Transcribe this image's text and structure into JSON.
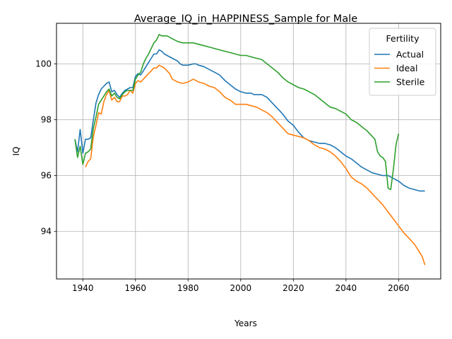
{
  "chart_data": {
    "type": "line",
    "title": "Average_IQ_in_HAPPINESS_Sample for Male",
    "xlabel": "Years",
    "ylabel": "IQ",
    "xlim": [
      1930,
      2076
    ],
    "ylim": [
      92.3,
      101.45
    ],
    "xticks": [
      1940,
      1960,
      1980,
      2000,
      2020,
      2040,
      2060
    ],
    "yticks": [
      94,
      96,
      98,
      100
    ],
    "grid": true,
    "legend": {
      "title": "Fertility",
      "position": "top-right"
    },
    "series": [
      {
        "name": "Actual",
        "color": "#1f77b4",
        "points": [
          [
            1937,
            97.3
          ],
          [
            1938,
            96.85
          ],
          [
            1939,
            97.65
          ],
          [
            1940,
            96.8
          ],
          [
            1941,
            97.3
          ],
          [
            1942,
            97.3
          ],
          [
            1943,
            97.35
          ],
          [
            1944,
            98.0
          ],
          [
            1945,
            98.6
          ],
          [
            1946,
            98.9
          ],
          [
            1947,
            99.1
          ],
          [
            1948,
            99.2
          ],
          [
            1949,
            99.3
          ],
          [
            1950,
            99.35
          ],
          [
            1951,
            99.0
          ],
          [
            1952,
            99.05
          ],
          [
            1953,
            98.9
          ],
          [
            1954,
            98.8
          ],
          [
            1955,
            98.95
          ],
          [
            1956,
            99.05
          ],
          [
            1957,
            99.1
          ],
          [
            1958,
            99.15
          ],
          [
            1959,
            99.15
          ],
          [
            1960,
            99.55
          ],
          [
            1961,
            99.65
          ],
          [
            1962,
            99.6
          ],
          [
            1963,
            99.75
          ],
          [
            1964,
            99.9
          ],
          [
            1965,
            100.05
          ],
          [
            1966,
            100.2
          ],
          [
            1967,
            100.35
          ],
          [
            1968,
            100.35
          ],
          [
            1969,
            100.5
          ],
          [
            1970,
            100.45
          ],
          [
            1971,
            100.35
          ],
          [
            1972,
            100.3
          ],
          [
            1973,
            100.25
          ],
          [
            1974,
            100.2
          ],
          [
            1975,
            100.15
          ],
          [
            1976,
            100.1
          ],
          [
            1977,
            100.0
          ],
          [
            1978,
            99.95
          ],
          [
            1980,
            99.95
          ],
          [
            1982,
            100.0
          ],
          [
            1983,
            100.0
          ],
          [
            1984,
            99.95
          ],
          [
            1986,
            99.9
          ],
          [
            1988,
            99.8
          ],
          [
            1990,
            99.7
          ],
          [
            1992,
            99.6
          ],
          [
            1994,
            99.4
          ],
          [
            1996,
            99.25
          ],
          [
            1998,
            99.1
          ],
          [
            2000,
            99.0
          ],
          [
            2002,
            98.95
          ],
          [
            2004,
            98.95
          ],
          [
            2005,
            98.9
          ],
          [
            2006,
            98.9
          ],
          [
            2008,
            98.9
          ],
          [
            2010,
            98.8
          ],
          [
            2012,
            98.6
          ],
          [
            2014,
            98.4
          ],
          [
            2016,
            98.2
          ],
          [
            2018,
            97.95
          ],
          [
            2020,
            97.8
          ],
          [
            2022,
            97.55
          ],
          [
            2024,
            97.35
          ],
          [
            2026,
            97.25
          ],
          [
            2028,
            97.2
          ],
          [
            2030,
            97.15
          ],
          [
            2032,
            97.15
          ],
          [
            2034,
            97.1
          ],
          [
            2036,
            97.0
          ],
          [
            2038,
            96.85
          ],
          [
            2040,
            96.7
          ],
          [
            2042,
            96.6
          ],
          [
            2044,
            96.45
          ],
          [
            2046,
            96.3
          ],
          [
            2048,
            96.2
          ],
          [
            2050,
            96.1
          ],
          [
            2052,
            96.05
          ],
          [
            2054,
            96.0
          ],
          [
            2056,
            96.0
          ],
          [
            2058,
            95.9
          ],
          [
            2060,
            95.8
          ],
          [
            2062,
            95.65
          ],
          [
            2064,
            95.55
          ],
          [
            2066,
            95.5
          ],
          [
            2068,
            95.45
          ],
          [
            2070,
            95.45
          ]
        ]
      },
      {
        "name": "Ideal",
        "color": "#ff7f0e",
        "points": [
          [
            1941,
            96.3
          ],
          [
            1942,
            96.5
          ],
          [
            1943,
            96.6
          ],
          [
            1944,
            97.4
          ],
          [
            1945,
            97.8
          ],
          [
            1946,
            98.25
          ],
          [
            1947,
            98.2
          ],
          [
            1948,
            98.65
          ],
          [
            1949,
            98.9
          ],
          [
            1950,
            99.05
          ],
          [
            1951,
            98.7
          ],
          [
            1952,
            98.8
          ],
          [
            1953,
            98.65
          ],
          [
            1954,
            98.65
          ],
          [
            1955,
            98.85
          ],
          [
            1956,
            98.85
          ],
          [
            1957,
            98.9
          ],
          [
            1958,
            99.05
          ],
          [
            1959,
            98.95
          ],
          [
            1960,
            99.3
          ],
          [
            1961,
            99.4
          ],
          [
            1962,
            99.35
          ],
          [
            1963,
            99.45
          ],
          [
            1964,
            99.55
          ],
          [
            1965,
            99.65
          ],
          [
            1966,
            99.75
          ],
          [
            1967,
            99.85
          ],
          [
            1968,
            99.85
          ],
          [
            1969,
            99.95
          ],
          [
            1970,
            99.9
          ],
          [
            1971,
            99.85
          ],
          [
            1972,
            99.75
          ],
          [
            1973,
            99.65
          ],
          [
            1974,
            99.45
          ],
          [
            1976,
            99.35
          ],
          [
            1978,
            99.3
          ],
          [
            1980,
            99.35
          ],
          [
            1982,
            99.45
          ],
          [
            1984,
            99.35
          ],
          [
            1986,
            99.3
          ],
          [
            1988,
            99.2
          ],
          [
            1990,
            99.15
          ],
          [
            1992,
            99.0
          ],
          [
            1994,
            98.8
          ],
          [
            1996,
            98.7
          ],
          [
            1998,
            98.55
          ],
          [
            2000,
            98.55
          ],
          [
            2002,
            98.55
          ],
          [
            2004,
            98.5
          ],
          [
            2006,
            98.45
          ],
          [
            2008,
            98.35
          ],
          [
            2010,
            98.25
          ],
          [
            2012,
            98.1
          ],
          [
            2014,
            97.9
          ],
          [
            2016,
            97.7
          ],
          [
            2018,
            97.5
          ],
          [
            2020,
            97.45
          ],
          [
            2022,
            97.4
          ],
          [
            2024,
            97.35
          ],
          [
            2026,
            97.25
          ],
          [
            2028,
            97.1
          ],
          [
            2030,
            97.0
          ],
          [
            2032,
            96.95
          ],
          [
            2034,
            96.85
          ],
          [
            2036,
            96.7
          ],
          [
            2038,
            96.5
          ],
          [
            2040,
            96.25
          ],
          [
            2042,
            95.95
          ],
          [
            2044,
            95.8
          ],
          [
            2046,
            95.7
          ],
          [
            2048,
            95.55
          ],
          [
            2050,
            95.35
          ],
          [
            2052,
            95.15
          ],
          [
            2054,
            94.95
          ],
          [
            2056,
            94.7
          ],
          [
            2058,
            94.45
          ],
          [
            2060,
            94.2
          ],
          [
            2062,
            93.95
          ],
          [
            2064,
            93.75
          ],
          [
            2066,
            93.55
          ],
          [
            2068,
            93.25
          ],
          [
            2069,
            93.1
          ],
          [
            2070,
            92.8
          ]
        ]
      },
      {
        "name": "Sterile",
        "color": "#2ca02c",
        "points": [
          [
            1937,
            97.3
          ],
          [
            1938,
            96.65
          ],
          [
            1939,
            97.05
          ],
          [
            1940,
            96.4
          ],
          [
            1941,
            96.8
          ],
          [
            1942,
            96.85
          ],
          [
            1943,
            96.95
          ],
          [
            1944,
            97.7
          ],
          [
            1945,
            98.1
          ],
          [
            1946,
            98.55
          ],
          [
            1947,
            98.7
          ],
          [
            1948,
            98.85
          ],
          [
            1949,
            99.0
          ],
          [
            1950,
            99.1
          ],
          [
            1951,
            98.85
          ],
          [
            1952,
            98.95
          ],
          [
            1953,
            98.8
          ],
          [
            1954,
            98.75
          ],
          [
            1955,
            98.9
          ],
          [
            1956,
            99.0
          ],
          [
            1957,
            99.05
          ],
          [
            1958,
            99.05
          ],
          [
            1959,
            99.05
          ],
          [
            1960,
            99.45
          ],
          [
            1961,
            99.6
          ],
          [
            1962,
            99.7
          ],
          [
            1963,
            100.0
          ],
          [
            1964,
            100.2
          ],
          [
            1965,
            100.35
          ],
          [
            1966,
            100.55
          ],
          [
            1967,
            100.75
          ],
          [
            1968,
            100.85
          ],
          [
            1969,
            101.05
          ],
          [
            1970,
            101.0
          ],
          [
            1972,
            101.0
          ],
          [
            1973,
            100.95
          ],
          [
            1974,
            100.9
          ],
          [
            1976,
            100.8
          ],
          [
            1978,
            100.75
          ],
          [
            1980,
            100.75
          ],
          [
            1982,
            100.75
          ],
          [
            1984,
            100.7
          ],
          [
            1986,
            100.65
          ],
          [
            1988,
            100.6
          ],
          [
            1990,
            100.55
          ],
          [
            1992,
            100.5
          ],
          [
            1994,
            100.45
          ],
          [
            1996,
            100.4
          ],
          [
            1998,
            100.35
          ],
          [
            2000,
            100.3
          ],
          [
            2002,
            100.3
          ],
          [
            2004,
            100.25
          ],
          [
            2006,
            100.2
          ],
          [
            2008,
            100.15
          ],
          [
            2010,
            100.0
          ],
          [
            2012,
            99.85
          ],
          [
            2014,
            99.7
          ],
          [
            2016,
            99.5
          ],
          [
            2018,
            99.35
          ],
          [
            2020,
            99.25
          ],
          [
            2022,
            99.15
          ],
          [
            2024,
            99.1
          ],
          [
            2026,
            99.0
          ],
          [
            2028,
            98.9
          ],
          [
            2030,
            98.75
          ],
          [
            2032,
            98.6
          ],
          [
            2034,
            98.45
          ],
          [
            2036,
            98.4
          ],
          [
            2038,
            98.3
          ],
          [
            2040,
            98.2
          ],
          [
            2042,
            98.0
          ],
          [
            2044,
            97.9
          ],
          [
            2046,
            97.75
          ],
          [
            2048,
            97.6
          ],
          [
            2050,
            97.4
          ],
          [
            2051,
            97.3
          ],
          [
            2052,
            96.85
          ],
          [
            2053,
            96.7
          ],
          [
            2054,
            96.65
          ],
          [
            2055,
            96.5
          ],
          [
            2056,
            95.55
          ],
          [
            2057,
            95.5
          ],
          [
            2058,
            96.2
          ],
          [
            2059,
            97.1
          ],
          [
            2060,
            97.5
          ]
        ]
      }
    ]
  }
}
